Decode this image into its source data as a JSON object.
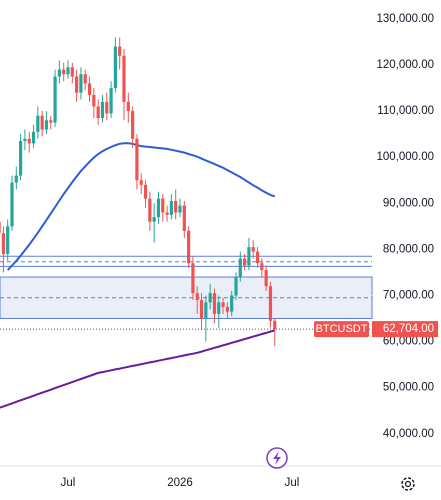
{
  "chart_data": {
    "type": "candlestick",
    "categories": [
      null,
      null,
      null,
      null,
      null,
      null,
      null,
      null,
      null,
      null,
      null,
      null,
      null,
      null,
      null,
      null,
      "Jul",
      null,
      null,
      null,
      null,
      null,
      null,
      null,
      null,
      null,
      null,
      null,
      null,
      null,
      null,
      null,
      null,
      null,
      null,
      null,
      null,
      null,
      null,
      null,
      null,
      null,
      "2026",
      null,
      null,
      null,
      null,
      null,
      null,
      null,
      null,
      null,
      null,
      null,
      null,
      null,
      null,
      null,
      null,
      null,
      null,
      null,
      null,
      null,
      null,
      null,
      null,
      null,
      "Jul",
      null
    ],
    "open": [
      86000,
      83500,
      79000,
      85000,
      94500,
      96000,
      103500,
      104000,
      103000,
      105500,
      109000,
      106000,
      108000,
      107500,
      117500,
      119000,
      118000,
      119500,
      117500,
      114000,
      118000,
      116000,
      113500,
      111000,
      108500,
      112000,
      109500,
      115000,
      124000,
      122000,
      112000,
      110000,
      104000,
      95000,
      94000,
      91000,
      86000,
      87000,
      91000,
      88000,
      87500,
      90500,
      88000,
      89500,
      84000,
      77000,
      70500,
      69000,
      65000,
      68500,
      70500,
      66000,
      68500,
      67500,
      66500,
      70000,
      74000,
      78000,
      76500,
      80500,
      79500,
      77000,
      75500,
      72000,
      64500,
      null,
      null,
      null,
      null,
      null
    ],
    "high": [
      88000,
      85000,
      86500,
      96000,
      98000,
      105000,
      106000,
      105500,
      107000,
      111000,
      110000,
      110000,
      109000,
      119000,
      121000,
      120500,
      121000,
      120500,
      119000,
      119500,
      119000,
      117500,
      115000,
      112500,
      113500,
      114000,
      116500,
      126000,
      126000,
      123500,
      114000,
      111000,
      105000,
      96500,
      95000,
      92500,
      90000,
      92500,
      92000,
      89500,
      92000,
      93000,
      91000,
      90500,
      85000,
      78500,
      72000,
      70500,
      70000,
      72500,
      71500,
      70000,
      69500,
      68500,
      71000,
      75000,
      79500,
      79000,
      82500,
      82000,
      80500,
      78000,
      76500,
      73000,
      65000,
      null,
      null,
      null,
      null,
      null
    ],
    "low": [
      81000,
      75000,
      77500,
      84000,
      93000,
      95000,
      101500,
      101000,
      102000,
      104000,
      104500,
      105000,
      106000,
      106500,
      116000,
      116500,
      117000,
      116000,
      112000,
      112500,
      114500,
      112000,
      108500,
      107000,
      107500,
      108000,
      108500,
      114000,
      119000,
      108000,
      107500,
      102000,
      93000,
      92000,
      89000,
      84000,
      81500,
      85500,
      86000,
      86000,
      86500,
      86500,
      87000,
      82500,
      76000,
      69000,
      66000,
      62500,
      60000,
      67000,
      64000,
      63000,
      66000,
      65000,
      65500,
      69000,
      73000,
      75500,
      75500,
      78000,
      76000,
      74000,
      71000,
      63000,
      59000,
      null,
      null,
      null,
      null,
      null
    ],
    "close": [
      83500,
      79000,
      85000,
      94500,
      96000,
      103500,
      104000,
      103000,
      105500,
      109000,
      106000,
      108000,
      107500,
      117500,
      119000,
      118000,
      119500,
      117500,
      114000,
      118000,
      116000,
      113500,
      111000,
      108500,
      112000,
      109500,
      115000,
      124000,
      122000,
      112000,
      110000,
      104000,
      95000,
      94000,
      91000,
      86000,
      87000,
      91000,
      88000,
      87500,
      90500,
      88000,
      89500,
      84000,
      77000,
      70500,
      69000,
      65000,
      68500,
      70500,
      66000,
      68500,
      67500,
      66500,
      70000,
      74000,
      78000,
      76500,
      80500,
      79500,
      77000,
      75500,
      72000,
      64500,
      62704,
      null,
      null,
      null,
      null,
      null
    ],
    "up_color": "#26a69a",
    "down_color": "#ef5350",
    "series": [
      {
        "color": "#2e5bd6",
        "values": [
          null,
          null,
          75500,
          76500,
          77500,
          78600,
          79800,
          81000,
          82300,
          83600,
          85000,
          86400,
          87800,
          89200,
          90600,
          92000,
          93300,
          94600,
          95800,
          97000,
          98000,
          99000,
          99900,
          100700,
          101300,
          101800,
          102200,
          102600,
          102900,
          103000,
          103000,
          102900,
          102600,
          102400,
          102300,
          102200,
          102100,
          102000,
          101900,
          101800,
          101600,
          101400,
          101200,
          101000,
          100700,
          100400,
          100100,
          99700,
          99300,
          98900,
          98500,
          98100,
          97700,
          97200,
          96700,
          96200,
          95700,
          95100,
          94500,
          93900,
          93400,
          92800,
          92300,
          91800,
          91500,
          null,
          null,
          null,
          null,
          null
        ]
      },
      {
        "color": "#6a1b9a",
        "values": [
          45600,
          45930,
          46260,
          46590,
          46920,
          47250,
          47580,
          47910,
          48240,
          48570,
          48900,
          49230,
          49560,
          49890,
          50220,
          50550,
          50880,
          51210,
          51540,
          51870,
          52200,
          52530,
          52860,
          53190,
          53380,
          53570,
          53760,
          53950,
          54140,
          54330,
          54520,
          54710,
          54900,
          55090,
          55280,
          55470,
          55660,
          55850,
          56040,
          56230,
          56420,
          56610,
          56800,
          56990,
          57180,
          57370,
          57560,
          57830,
          58100,
          58370,
          58640,
          58910,
          59180,
          59450,
          59720,
          59990,
          60260,
          60530,
          60800,
          61070,
          61340,
          61610,
          61880,
          62150,
          62420,
          null,
          null,
          null,
          null,
          null
        ]
      }
    ],
    "zone": {
      "low": 65000,
      "high": 74000,
      "color": "#5b7fd4"
    },
    "hlines": [
      {
        "value": 78500,
        "dashed": false
      },
      {
        "value": 77300,
        "dashed": true
      },
      {
        "value": 76300,
        "dashed": false
      },
      {
        "value": 69500,
        "dashed": true
      }
    ],
    "last_price": {
      "symbol": "BTCUSDT",
      "value": 62704,
      "label": "62,704.00",
      "color": "#ef5350"
    },
    "ylim": [
      33000,
      134100
    ],
    "yticks": [
      {
        "value": 130000,
        "label": "130,000.00"
      },
      {
        "value": 120000,
        "label": "120,000.00"
      },
      {
        "value": 110000,
        "label": "110,000.00"
      },
      {
        "value": 100000,
        "label": "100,000.00"
      },
      {
        "value": 90000,
        "label": "90,000.00"
      },
      {
        "value": 80000,
        "label": "80,000.00"
      },
      {
        "value": 70000,
        "label": "70,000.00"
      },
      {
        "value": 60000,
        "label": "60,000.00"
      },
      {
        "value": 50000,
        "label": "50,000.00"
      },
      {
        "value": 40000,
        "label": "40,000.00"
      }
    ]
  }
}
